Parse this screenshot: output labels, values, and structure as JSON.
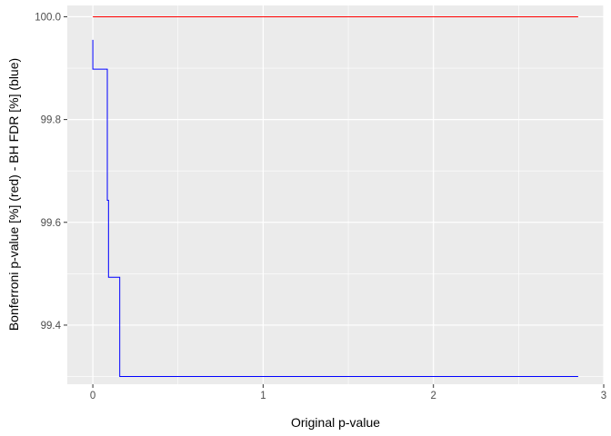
{
  "chart_data": {
    "type": "line",
    "title": "",
    "xlabel": "Original p-value",
    "ylabel": "Bonferroni p-value [%] (red) - BH FDR [%] (blue)",
    "xlim": [
      -0.15,
      3.0
    ],
    "ylim": [
      99.285,
      100.022
    ],
    "x_ticks": [
      0,
      1,
      2,
      3
    ],
    "x_tick_labels": [
      "0",
      "1",
      "2",
      "3"
    ],
    "y_ticks": [
      99.4,
      99.6,
      99.8,
      100.0
    ],
    "y_tick_labels": [
      "99.4",
      "99.6",
      "99.8",
      "100.0"
    ],
    "grid": true,
    "legend": "none",
    "series": [
      {
        "color": "#ff0000",
        "step": false,
        "points": [
          [
            0,
            100.0
          ],
          [
            2.85,
            100.0
          ]
        ]
      },
      {
        "color": "#0000ff",
        "step": true,
        "points": [
          [
            0,
            99.955
          ],
          [
            0,
            99.898
          ],
          [
            0.085,
            99.898
          ],
          [
            0.085,
            99.643
          ],
          [
            0.092,
            99.643
          ],
          [
            0.092,
            99.493
          ],
          [
            0.158,
            99.493
          ],
          [
            0.158,
            99.3
          ],
          [
            2.85,
            99.3
          ]
        ]
      }
    ]
  }
}
